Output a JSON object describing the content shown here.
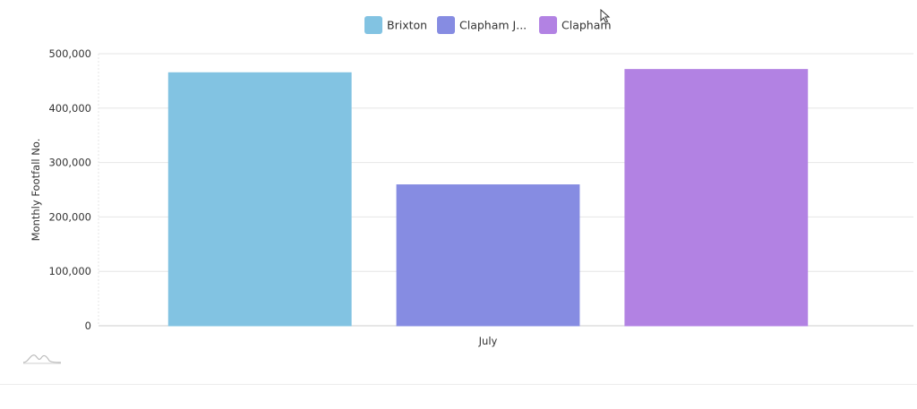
{
  "chart_data": {
    "type": "bar",
    "categories": [
      "July"
    ],
    "series": [
      {
        "name": "Brixton",
        "legend_label": "Brixton",
        "values": [
          465000
        ],
        "color": "#82c3e2"
      },
      {
        "name": "Clapham Junction",
        "legend_label": "Clapham J...",
        "values": [
          259000
        ],
        "color": "#868ce2"
      },
      {
        "name": "Clapham",
        "legend_label": "Clapham",
        "values": [
          471000
        ],
        "color": "#b282e3"
      }
    ],
    "title": "",
    "xlabel": "",
    "ylabel": "Monthly Footfall No.",
    "ylim": [
      0,
      500000
    ],
    "yticks": [
      0,
      100000,
      200000,
      300000,
      400000,
      500000
    ],
    "ytick_labels": [
      "0",
      "100,000",
      "200,000",
      "300,000",
      "400,000",
      "500,000"
    ],
    "grid": true,
    "legend_position": "top-center"
  }
}
